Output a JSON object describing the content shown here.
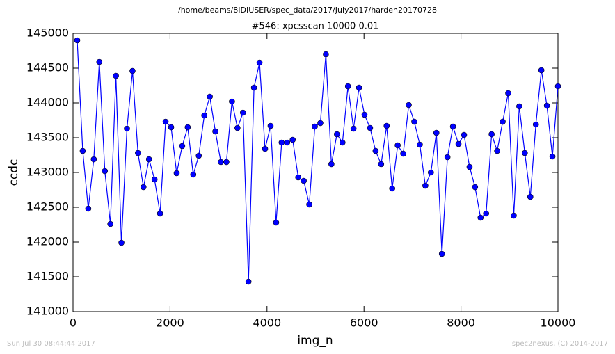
{
  "chart_data": {
    "type": "line",
    "header": "/home/beams/8IDIUSER/spec_data/2017/July2017/harden20170728",
    "title": "#546: xpcsscan 10000 0.01",
    "x_label": "img_n",
    "y_label": "ccdc",
    "footer_left": "Sun Jul 30 08:44:44 2017",
    "footer_right": "spec2nexus, (C) 2014-2017",
    "x": [
      86,
      200,
      314,
      428,
      542,
      656,
      770,
      884,
      998,
      1112,
      1226,
      1339,
      1453,
      1567,
      1681,
      1795,
      1909,
      2023,
      2137,
      2251,
      2365,
      2479,
      2593,
      2707,
      2821,
      2935,
      3049,
      3163,
      3277,
      3391,
      3505,
      3618,
      3732,
      3846,
      3960,
      4074,
      4188,
      4302,
      4416,
      4530,
      4644,
      4758,
      4872,
      4986,
      5100,
      5214,
      5328,
      5442,
      5556,
      5670,
      5784,
      5898,
      6011,
      6125,
      6239,
      6353,
      6467,
      6581,
      6695,
      6809,
      6923,
      7037,
      7151,
      7265,
      7379,
      7493,
      7607,
      7721,
      7835,
      7949,
      8063,
      8177,
      8290,
      8404,
      8518,
      8632,
      8746,
      8860,
      8974,
      9088,
      9202,
      9316,
      9430,
      9544,
      9658,
      9772,
      9886,
      10000
    ],
    "series": [
      {
        "color": "#0000ff",
        "values": [
          144900,
          143310,
          142480,
          143190,
          144590,
          143020,
          142260,
          144390,
          141990,
          143630,
          144460,
          143280,
          142790,
          143190,
          142900,
          142410,
          143730,
          143650,
          142990,
          143380,
          143650,
          142970,
          143240,
          143820,
          144090,
          143590,
          143150,
          143150,
          144020,
          143640,
          143860,
          141430,
          144220,
          144580,
          143340,
          143670,
          142280,
          143430,
          143430,
          143470,
          142930,
          142880,
          142540,
          143660,
          143710,
          144700,
          143120,
          143550,
          143430,
          144240,
          143630,
          144220,
          143830,
          143640,
          143310,
          143120,
          143670,
          142770,
          143390,
          143270,
          143970,
          143730,
          143400,
          142810,
          143000,
          143570,
          141830,
          143220,
          143660,
          143410,
          143540,
          143080,
          142790,
          142350,
          142410,
          143550,
          143310,
          143730,
          144140,
          142380,
          143950,
          143280,
          142650,
          143690,
          144470,
          143960,
          143230,
          144240
        ]
      }
    ],
    "xlim": [
      0,
      10000
    ],
    "xticks": [
      0,
      2000,
      4000,
      6000,
      8000,
      10000
    ],
    "ylim": [
      141000,
      145000
    ],
    "yticks": [
      141000,
      141500,
      142000,
      142500,
      143000,
      143500,
      144000,
      144500,
      145000
    ]
  }
}
